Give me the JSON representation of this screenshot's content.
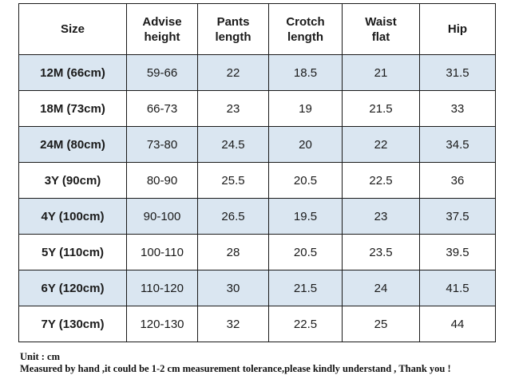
{
  "table": {
    "headers": [
      "Size",
      "Advise height",
      "Pants length",
      "Crotch length",
      "Waist flat",
      "Hip"
    ],
    "header_lines": [
      [
        "Size"
      ],
      [
        "Advise",
        "height"
      ],
      [
        "Pants",
        "length"
      ],
      [
        "Crotch",
        "length"
      ],
      [
        "Waist",
        "flat"
      ],
      [
        "Hip"
      ]
    ],
    "rows": [
      [
        "12M (66cm)",
        "59-66",
        "22",
        "18.5",
        "21",
        "31.5"
      ],
      [
        "18M (73cm)",
        "66-73",
        "23",
        "19",
        "21.5",
        "33"
      ],
      [
        "24M (80cm)",
        "73-80",
        "24.5",
        "20",
        "22",
        "34.5"
      ],
      [
        "3Y (90cm)",
        "80-90",
        "25.5",
        "20.5",
        "22.5",
        "36"
      ],
      [
        "4Y (100cm)",
        "90-100",
        "26.5",
        "19.5",
        "23",
        "37.5"
      ],
      [
        "5Y (110cm)",
        "100-110",
        "28",
        "20.5",
        "23.5",
        "39.5"
      ],
      [
        "6Y (120cm)",
        "110-120",
        "30",
        "21.5",
        "24",
        "41.5"
      ],
      [
        "7Y (130cm)",
        "120-130",
        "32",
        "22.5",
        "25",
        "44"
      ]
    ],
    "colors": {
      "shaded_row": "#dae6f1",
      "plain_row": "#ffffff",
      "border": "#1a1a1a"
    }
  },
  "notes": {
    "unit": "Unit : cm",
    "disclaimer": "Measured by hand ,it could be 1-2 cm measurement tolerance,please kindly understand , Thank you !"
  }
}
